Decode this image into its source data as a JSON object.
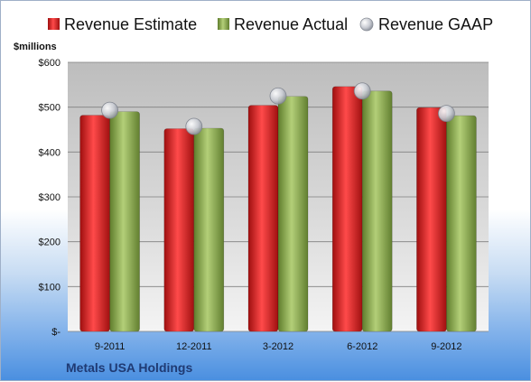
{
  "chart_data": {
    "type": "bar",
    "title": "",
    "ylabel": "$millions",
    "xlabel": "",
    "company": "Metals USA Holdings",
    "categories": [
      "9-2011",
      "12-2011",
      "3-2012",
      "6-2012",
      "9-2012"
    ],
    "series": [
      {
        "name": "Revenue Estimate",
        "kind": "bar",
        "color": "#e02020",
        "values": [
          482,
          452,
          504,
          546,
          499
        ]
      },
      {
        "name": "Revenue Actual",
        "kind": "bar",
        "color": "#8fb050",
        "values": [
          490,
          453,
          524,
          536,
          481
        ]
      },
      {
        "name": "Revenue GAAP",
        "kind": "marker",
        "color": "#c0c4cc",
        "values": [
          493,
          457,
          525,
          536,
          486
        ]
      }
    ],
    "ylim": [
      0,
      600
    ],
    "yticks": [
      0,
      100,
      200,
      300,
      400,
      500,
      600
    ],
    "ytick_labels": [
      "$-",
      "$100",
      "$200",
      "$300",
      "$400",
      "$500",
      "$600"
    ],
    "grid": true,
    "legend_position": "top"
  }
}
